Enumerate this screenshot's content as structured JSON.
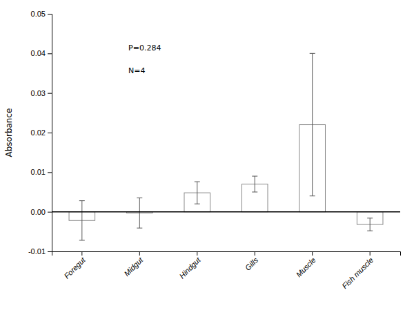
{
  "chart_data": {
    "type": "bar",
    "categories": [
      "Foregut",
      "Midgut",
      "Hindgut",
      "Gills",
      "Muscle",
      "Fish muscle"
    ],
    "values": [
      -0.0022,
      -0.0003,
      0.0048,
      0.007,
      0.022,
      -0.0032
    ],
    "errors": [
      0.005,
      0.0038,
      0.0028,
      0.002,
      0.018,
      0.0016
    ],
    "color": "#ffffff",
    "ylabel": "Absorbance",
    "ylim": [
      -0.01,
      0.05
    ],
    "yticks": [
      -0.01,
      {
        "value": 0,
        "label": "0.00"
      },
      0.01,
      0.02,
      0.03,
      0.04,
      0.05
    ],
    "annotations": [
      "P=0.284",
      "N=4"
    ]
  }
}
